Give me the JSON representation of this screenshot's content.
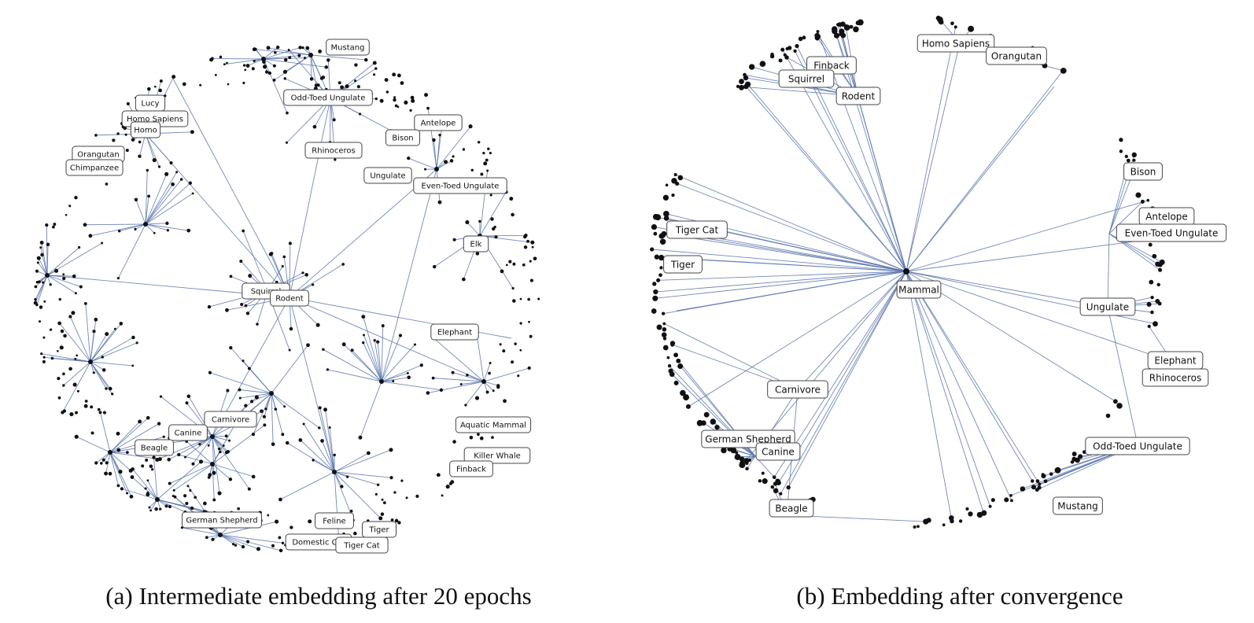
{
  "panels": [
    {
      "id": "a",
      "caption": "(a) Intermediate embedding after 20 epochs",
      "labels": [
        "Mustang",
        "Odd-Toed Ungulate",
        "Lucy",
        "Homo Sapiens",
        "Homo",
        "Orangutan",
        "Chimpanzee",
        "Rhinoceros",
        "Antelope",
        "Bison",
        "Ungulate",
        "Even-Toed Ungulate",
        "Elk",
        "Squirrel",
        "Rodent",
        "Elephant",
        "Carnivore",
        "Canine",
        "Beagle",
        "Aquatic Mammal",
        "Killer Whale",
        "Finback",
        "German Shepherd",
        "Feline",
        "Tiger",
        "Domestic Cat",
        "Tiger Cat"
      ]
    },
    {
      "id": "b",
      "caption": "(b) Embedding after convergence",
      "labels": [
        "Homo Sapiens",
        "Orangutan",
        "Finback",
        "Squirrel",
        "Rodent",
        "Bison",
        "Antelope",
        "Even-Toed Ungulate",
        "Tiger Cat",
        "Tiger",
        "Mammal",
        "Ungulate",
        "Elephant",
        "Rhinoceros",
        "Carnivore",
        "German Shepherd",
        "Canine",
        "Odd-Toed Ungulate",
        "Mustang",
        "Beagle"
      ]
    }
  ],
  "colors": {
    "edge": "#5a74ad",
    "node": "#111111"
  }
}
